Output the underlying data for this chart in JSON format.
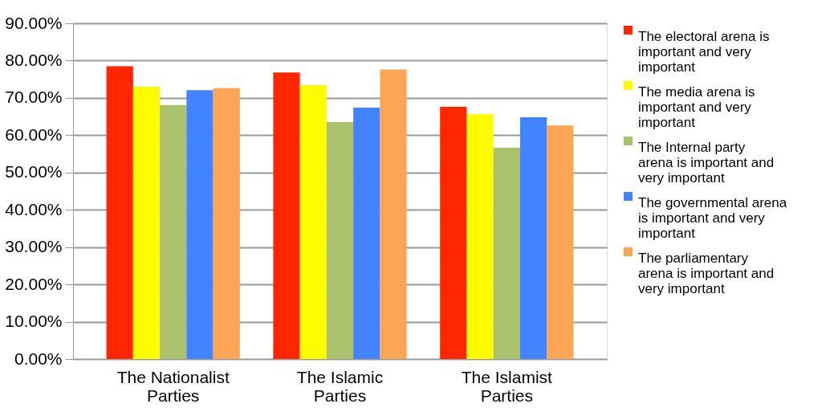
{
  "chart_data": {
    "type": "bar",
    "categories": [
      "The Nationalist Parties",
      "The Islamic Parties",
      "The Islamist Parties"
    ],
    "series": [
      {
        "name": "The electoral arena is important and very important",
        "color": "#ff2600",
        "values": [
          78.5,
          76.8,
          67.6
        ]
      },
      {
        "name": "The media arena is important and very important",
        "color": "#fffb00",
        "values": [
          73.0,
          73.4,
          65.6
        ]
      },
      {
        "name": "The Internal party arena is important and very important",
        "color": "#a9c26b",
        "values": [
          68.1,
          63.5,
          56.7
        ]
      },
      {
        "name": "The governmental arena is important and very important",
        "color": "#4283ff",
        "values": [
          72.1,
          67.4,
          64.8
        ]
      },
      {
        "name": "The parliamentary arena is important and very important",
        "color": "#fba555",
        "values": [
          72.6,
          77.6,
          62.6
        ]
      }
    ],
    "ylim": [
      0,
      90
    ],
    "yticks": [
      {
        "value": 0,
        "label": "0.00%"
      },
      {
        "value": 10,
        "label": "10.00%"
      },
      {
        "value": 20,
        "label": "20.00%"
      },
      {
        "value": 30,
        "label": "30.00%"
      },
      {
        "value": 40,
        "label": "40.00%"
      },
      {
        "value": 50,
        "label": "50.00%"
      },
      {
        "value": 60,
        "label": "60.00%"
      },
      {
        "value": 70,
        "label": "70.00%"
      },
      {
        "value": 80,
        "label": "80.00%"
      },
      {
        "value": 90,
        "label": "90.00%"
      }
    ],
    "grid": "y",
    "legend": "right"
  }
}
